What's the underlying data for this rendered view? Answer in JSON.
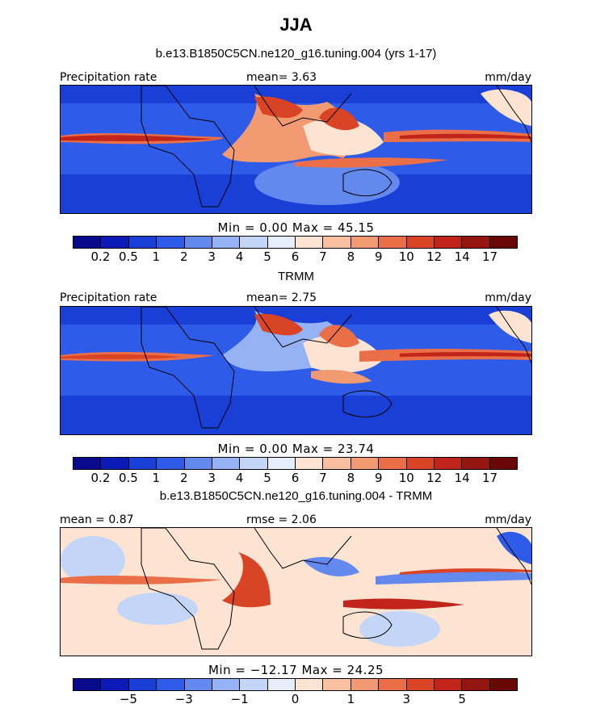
{
  "title": "JJA",
  "colors": {
    "precip_scale": [
      "#080a8c",
      "#0a1bb8",
      "#1a3fd6",
      "#2e5ce8",
      "#6489ee",
      "#95b2f4",
      "#c4d6f8",
      "#e6eefb",
      "#fde3d2",
      "#f8bfa0",
      "#f29a72",
      "#ea6f49",
      "#d94326",
      "#c0241a",
      "#951510",
      "#6a0808"
    ],
    "diff_scale": [
      "#080a8c",
      "#0a1bb8",
      "#1a3fd6",
      "#2e5ce8",
      "#6489ee",
      "#95b2f4",
      "#c4d6f8",
      "#e6eefb",
      "#fde3d2",
      "#f8bfa0",
      "#f29a72",
      "#ea6f49",
      "#d94326",
      "#c0241a",
      "#951510",
      "#6a0808"
    ]
  },
  "chart_data": [
    {
      "type": "heatmap",
      "title": "b.e13.B1850C5CN.ne120_g16.tuning.004 (yrs 1-17)",
      "left_label": "Precipitation rate",
      "center_label": "mean=   3.63",
      "right_label": "mm/day",
      "mean": 3.63,
      "min": 0.0,
      "max": 45.15,
      "minmax_text": "Min =     0.00  Max =   45.15",
      "colorbar_ticks": [
        "0.2",
        "0.5",
        "1",
        "2",
        "3",
        "4",
        "5",
        "6",
        "7",
        "8",
        "9",
        "10",
        "12",
        "14",
        "17"
      ]
    },
    {
      "type": "heatmap",
      "title": "TRMM",
      "left_label": "Precipitation rate",
      "center_label": "mean=   2.75",
      "right_label": "mm/day",
      "mean": 2.75,
      "min": 0.0,
      "max": 23.74,
      "minmax_text": "Min =     0.00  Max =   23.74",
      "colorbar_ticks": [
        "0.2",
        "0.5",
        "1",
        "2",
        "3",
        "4",
        "5",
        "6",
        "7",
        "8",
        "9",
        "10",
        "12",
        "14",
        "17"
      ]
    },
    {
      "type": "heatmap",
      "title": "b.e13.B1850C5CN.ne120_g16.tuning.004 - TRMM",
      "left_label": "mean =    0.87",
      "center_label": "rmse =    2.06",
      "right_label": "mm/day",
      "mean": 0.87,
      "rmse": 2.06,
      "min": -12.17,
      "max": 24.25,
      "minmax_text": "Min =  −12.17  Max =   24.25",
      "colorbar_ticks": [
        "−5",
        "−3",
        "−1",
        "0",
        "1",
        "3",
        "5"
      ]
    }
  ]
}
